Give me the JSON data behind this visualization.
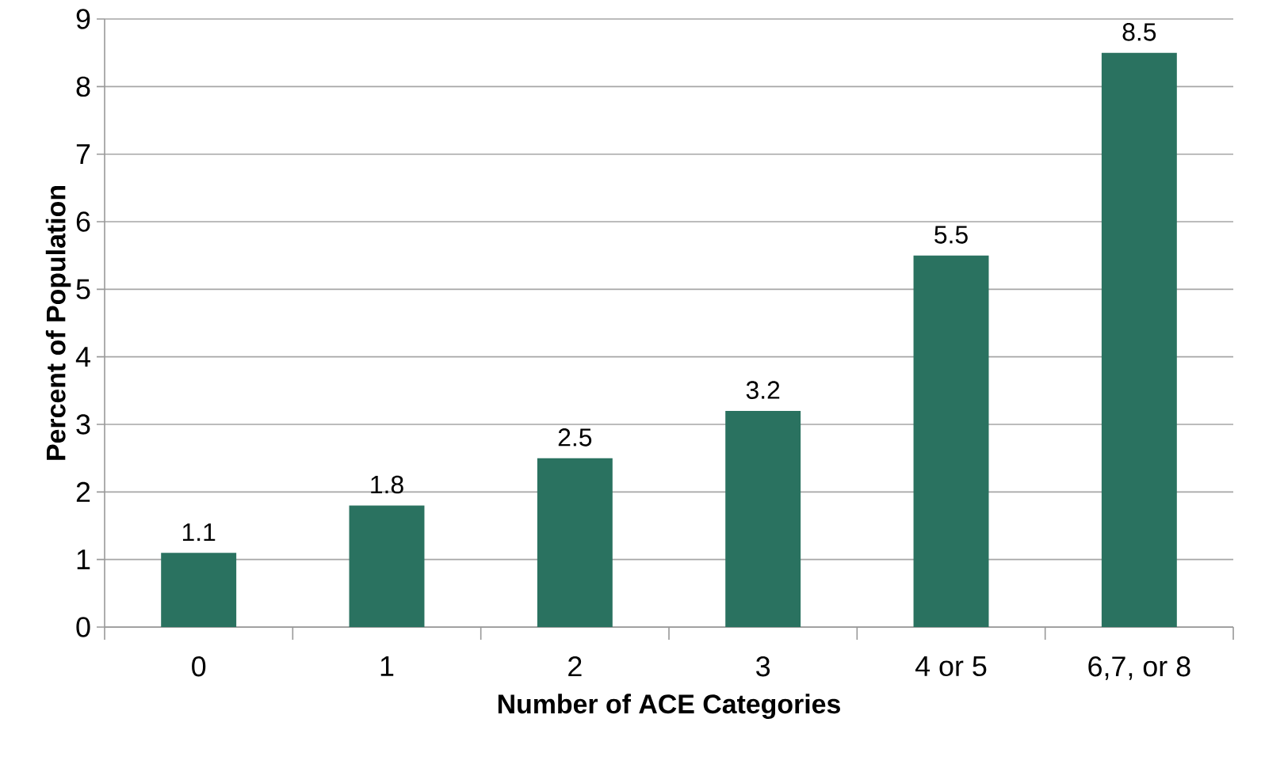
{
  "chart_data": {
    "type": "bar",
    "xlabel": "Number of ACE Categories",
    "ylabel": "Percent of Population",
    "categories": [
      "0",
      "1",
      "2",
      "3",
      "4 or 5",
      "6,7, or 8"
    ],
    "values": [
      1.1,
      1.8,
      2.5,
      3.2,
      5.5,
      8.5
    ],
    "color": "#2a7260",
    "ylim": [
      0,
      9
    ],
    "yticks": [
      0,
      1,
      2,
      3,
      4,
      5,
      6,
      7,
      8,
      9
    ],
    "grid": "y",
    "data_labels": true
  }
}
